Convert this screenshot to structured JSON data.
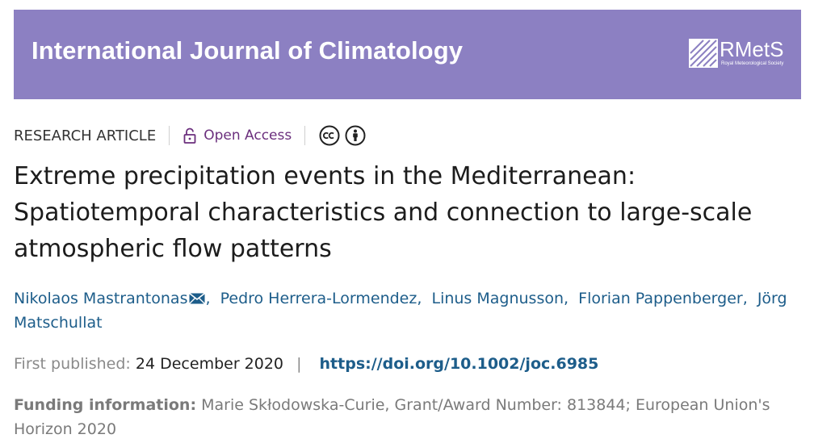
{
  "journal": {
    "title": "International Journal of Climatology",
    "publisher_name": "RMetS",
    "publisher_subtitle": "Royal Meteorological Society",
    "banner_color": "#8c80c2"
  },
  "article_meta": {
    "type": "RESEARCH ARTICLE",
    "open_access_label": "Open Access",
    "open_access_icon": "lock-open-icon",
    "license_icons": [
      "cc-icon",
      "by-icon"
    ]
  },
  "article": {
    "title_lines": [
      "Extreme precipitation events in the Mediterranean:",
      "Spatiotemporal characteristics and connection to large-scale",
      "atmospheric flow patterns"
    ]
  },
  "authors": [
    "Nikolaos Mastrantonas",
    "Pedro Herrera-Lormendez",
    "Linus Magnusson",
    "Florian Pappenberger",
    "Jörg Matschullat"
  ],
  "publication": {
    "label": "First published:",
    "date": "24 December 2020",
    "separator": "|",
    "doi": "https://doi.org/10.1002/joc.6985"
  },
  "funding": {
    "label": "Funding information:",
    "text": "Marie Skłodowska-Curie, Grant/Award Number: 813844; European Union's Horizon 2020"
  },
  "colors": {
    "link": "#1d5d8a",
    "open_access": "#6b2f7d"
  }
}
